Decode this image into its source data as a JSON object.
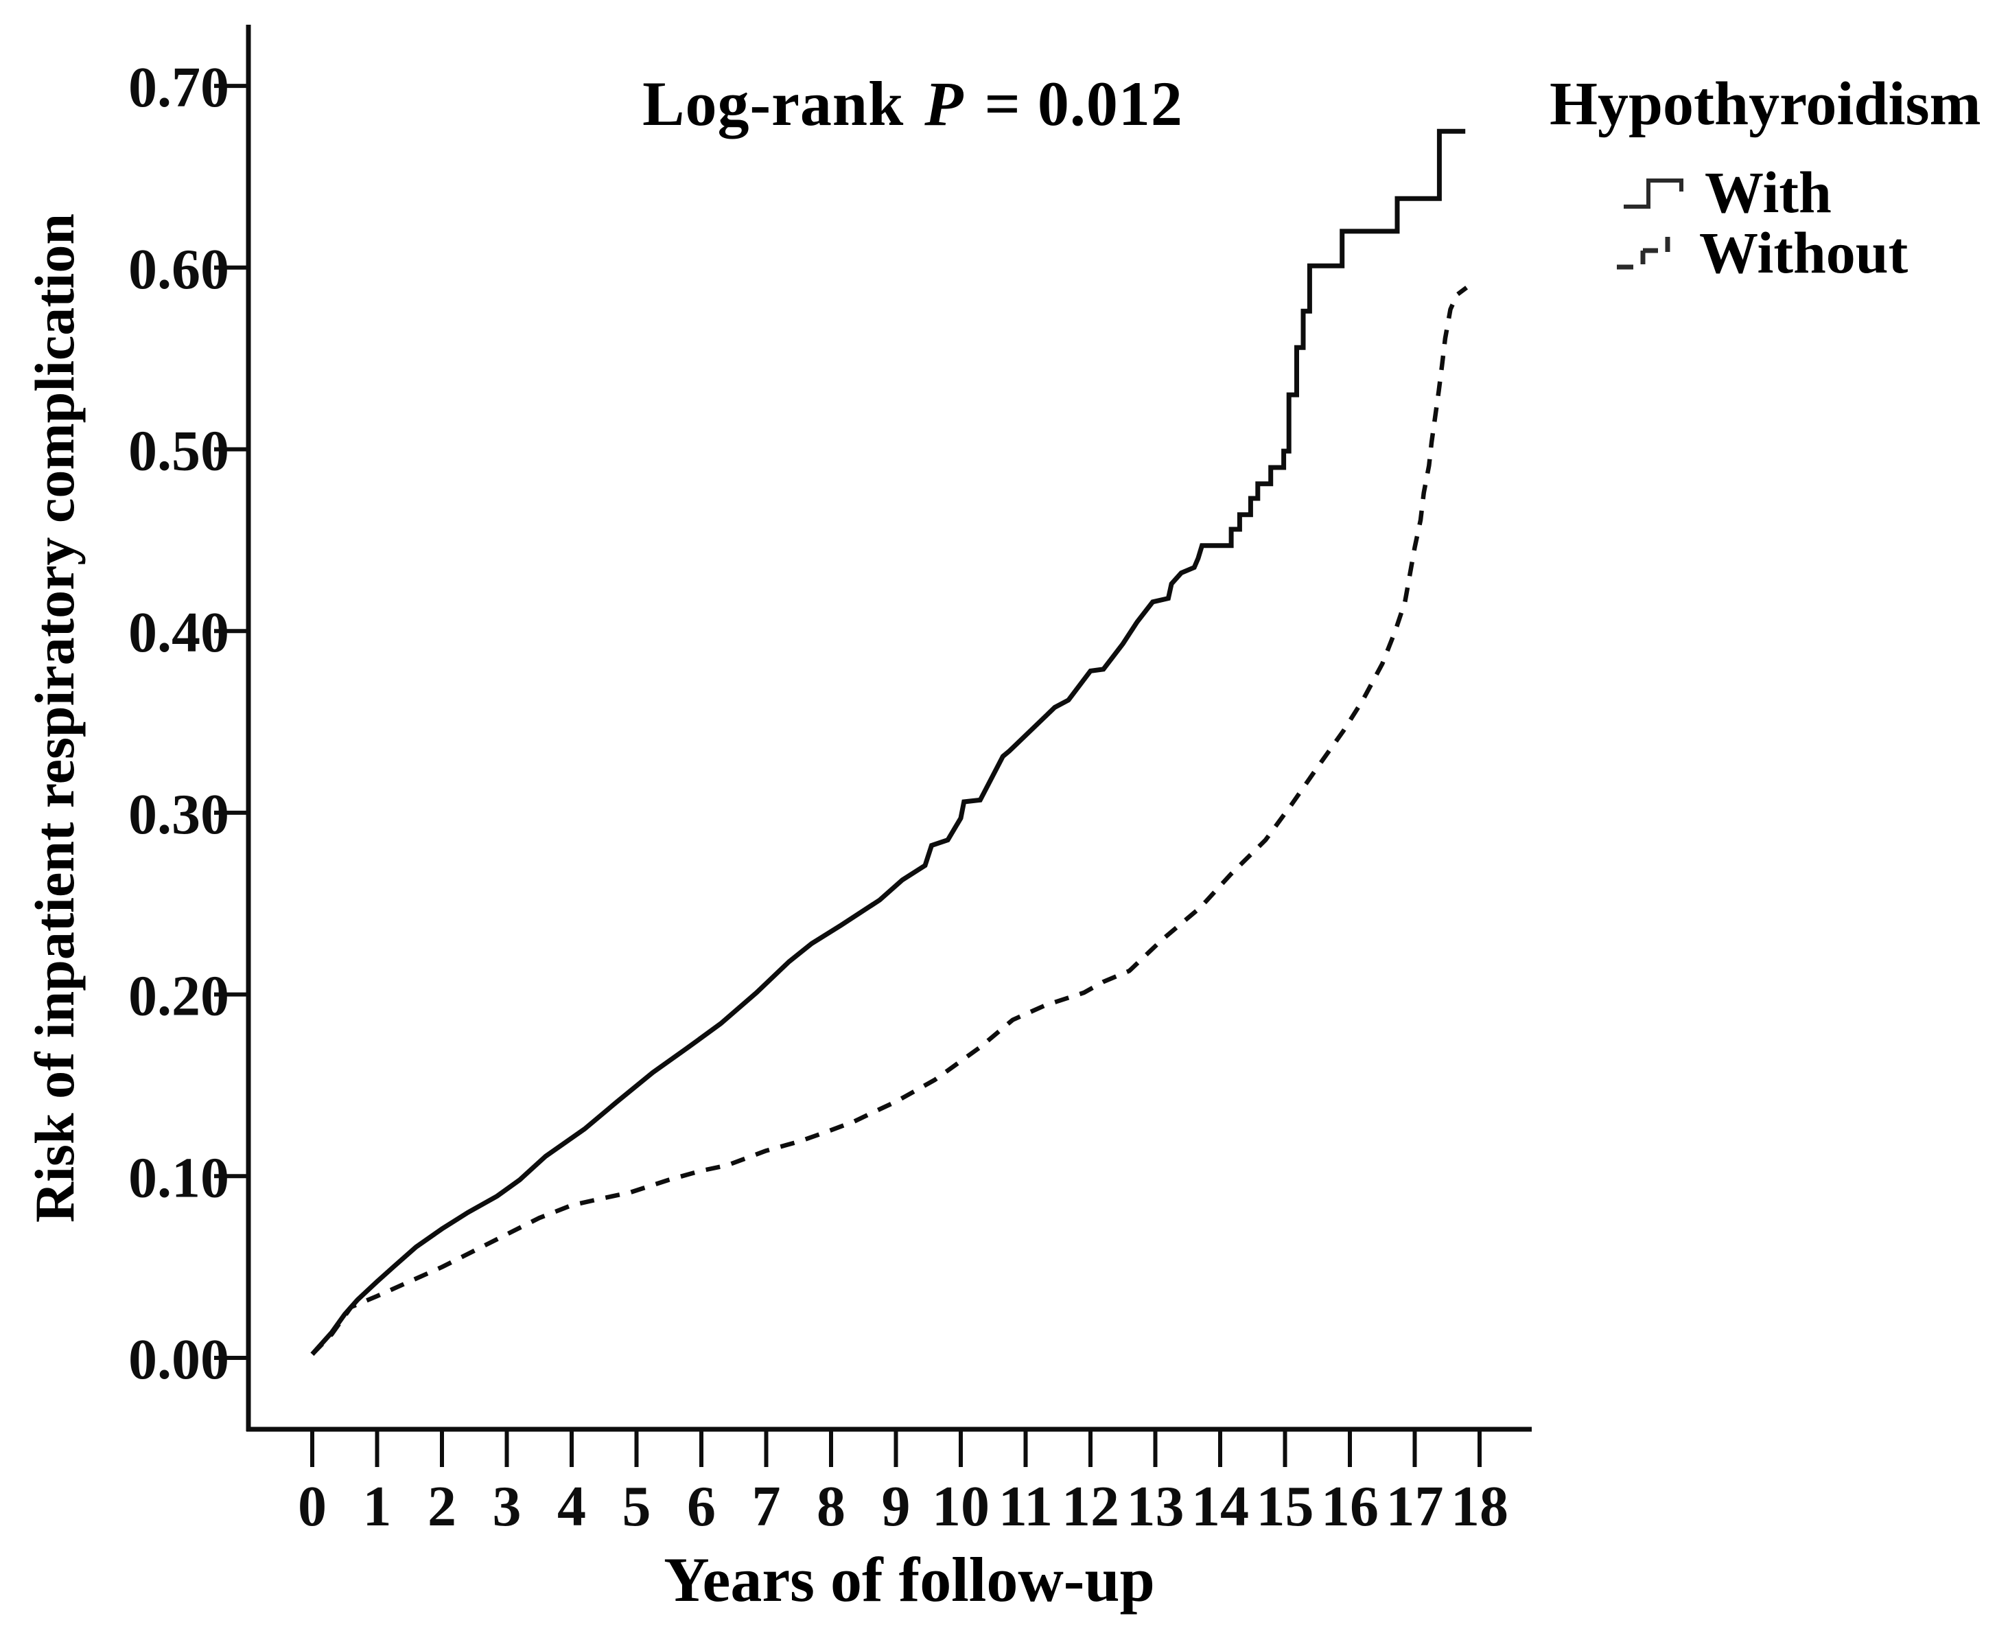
{
  "figure": {
    "background": "#ffffff",
    "ink_color": "#0d0d0d"
  },
  "annotation": {
    "prefix": "Log-rank",
    "stat": "P",
    "suffix": "= 0.012"
  },
  "y_axis": {
    "label": "Risk of inpatient respiratory complication",
    "tick_labels": [
      "0.00",
      "0.10",
      "0.20",
      "0.30",
      "0.40",
      "0.50",
      "0.60",
      "0.70"
    ],
    "tick_values": [
      0.0,
      0.1,
      0.2,
      0.3,
      0.4,
      0.5,
      0.6,
      0.7
    ]
  },
  "x_axis": {
    "label": "Years of follow-up",
    "tick_labels": [
      "0",
      "1",
      "2",
      "3",
      "4",
      "5",
      "6",
      "7",
      "8",
      "9",
      "10",
      "11",
      "12",
      "13",
      "14",
      "15",
      "16",
      "17",
      "18"
    ],
    "tick_values": [
      0,
      1,
      2,
      3,
      4,
      5,
      6,
      7,
      8,
      9,
      10,
      11,
      12,
      13,
      14,
      15,
      16,
      17,
      18
    ]
  },
  "legend": {
    "title": "Hypothyroidism",
    "items": [
      {
        "label": "With",
        "line_style": "solid"
      },
      {
        "label": "Without",
        "line_style": "dashed"
      }
    ]
  },
  "chart_data": {
    "type": "line",
    "subtype": "cumulative-risk-kaplan-meier",
    "title": "Log-rank P = 0.012",
    "xlabel": "Years of follow-up",
    "ylabel": "Risk of inpatient respiratory complication",
    "xlim": [
      0,
      18.8
    ],
    "ylim": [
      0,
      0.75
    ],
    "grid": false,
    "legend_title": "Hypothyroidism",
    "legend_position": "top-right-outside",
    "series": [
      {
        "name": "With",
        "style": "solid",
        "points": [
          [
            0,
            0.002
          ],
          [
            0.15,
            0.008
          ],
          [
            0.3,
            0.014
          ],
          [
            0.5,
            0.024
          ],
          [
            0.7,
            0.032
          ],
          [
            1,
            0.042
          ],
          [
            1.25,
            0.05
          ],
          [
            1.6,
            0.061
          ],
          [
            2,
            0.071
          ],
          [
            2.4,
            0.08
          ],
          [
            2.85,
            0.089
          ],
          [
            3.2,
            0.098
          ],
          [
            3.6,
            0.111
          ],
          [
            4.2,
            0.126
          ],
          [
            4.7,
            0.141
          ],
          [
            5.25,
            0.157
          ],
          [
            5.8,
            0.171
          ],
          [
            6.3,
            0.184
          ],
          [
            6.85,
            0.201
          ],
          [
            7.35,
            0.218
          ],
          [
            7.7,
            0.228
          ],
          [
            8.15,
            0.238
          ],
          [
            8.75,
            0.252
          ],
          [
            9.1,
            0.263
          ],
          [
            9.45,
            0.271
          ],
          [
            9.55,
            0.282
          ],
          [
            9.8,
            0.285
          ],
          [
            10.0,
            0.297
          ],
          [
            10.05,
            0.306
          ],
          [
            10.3,
            0.307
          ],
          [
            10.65,
            0.331
          ],
          [
            10.75,
            0.334
          ],
          [
            11.1,
            0.346
          ],
          [
            11.45,
            0.358
          ],
          [
            11.66,
            0.362
          ],
          [
            12.0,
            0.378
          ],
          [
            12.2,
            0.379
          ],
          [
            12.5,
            0.393
          ],
          [
            12.72,
            0.405
          ],
          [
            12.96,
            0.416
          ],
          [
            13.2,
            0.418
          ],
          [
            13.25,
            0.426
          ],
          [
            13.4,
            0.432
          ],
          [
            13.6,
            0.435
          ],
          [
            13.66,
            0.44
          ],
          [
            13.72,
            0.447
          ],
          [
            14.17,
            0.447
          ],
          [
            14.17,
            0.456
          ],
          [
            14.3,
            0.456
          ],
          [
            14.3,
            0.464
          ],
          [
            14.47,
            0.464
          ],
          [
            14.47,
            0.473
          ],
          [
            14.58,
            0.473
          ],
          [
            14.58,
            0.481
          ],
          [
            14.78,
            0.481
          ],
          [
            14.78,
            0.49
          ],
          [
            14.98,
            0.49
          ],
          [
            14.98,
            0.499
          ],
          [
            15.06,
            0.499
          ],
          [
            15.06,
            0.53
          ],
          [
            15.18,
            0.53
          ],
          [
            15.18,
            0.556
          ],
          [
            15.28,
            0.556
          ],
          [
            15.28,
            0.576
          ],
          [
            15.38,
            0.576
          ],
          [
            15.38,
            0.601
          ],
          [
            15.88,
            0.601
          ],
          [
            15.88,
            0.62
          ],
          [
            16.73,
            0.62
          ],
          [
            16.73,
            0.638
          ],
          [
            17.38,
            0.638
          ],
          [
            17.38,
            0.675
          ],
          [
            17.78,
            0.675
          ]
        ]
      },
      {
        "name": "Without",
        "style": "dashed",
        "points": [
          [
            0,
            0.002
          ],
          [
            0.3,
            0.013
          ],
          [
            0.6,
            0.028
          ],
          [
            1,
            0.034
          ],
          [
            1.5,
            0.042
          ],
          [
            2,
            0.05
          ],
          [
            2.5,
            0.059
          ],
          [
            3,
            0.068
          ],
          [
            3.5,
            0.077
          ],
          [
            4,
            0.084
          ],
          [
            4.5,
            0.088
          ],
          [
            4.9,
            0.091
          ],
          [
            5.5,
            0.098
          ],
          [
            6,
            0.103
          ],
          [
            6.4,
            0.106
          ],
          [
            7,
            0.114
          ],
          [
            7.5,
            0.119
          ],
          [
            7.9,
            0.124
          ],
          [
            8.35,
            0.13
          ],
          [
            8.7,
            0.136
          ],
          [
            9,
            0.141
          ],
          [
            9.3,
            0.147
          ],
          [
            9.6,
            0.153
          ],
          [
            9.95,
            0.162
          ],
          [
            10.3,
            0.171
          ],
          [
            10.8,
            0.186
          ],
          [
            11.3,
            0.194
          ],
          [
            11.9,
            0.201
          ],
          [
            12.2,
            0.207
          ],
          [
            12.6,
            0.213
          ],
          [
            13.1,
            0.23
          ],
          [
            13.7,
            0.248
          ],
          [
            14.16,
            0.266
          ],
          [
            14.7,
            0.285
          ],
          [
            15.11,
            0.305
          ],
          [
            15.5,
            0.325
          ],
          [
            15.9,
            0.345
          ],
          [
            16.2,
            0.362
          ],
          [
            16.5,
            0.382
          ],
          [
            16.7,
            0.4
          ],
          [
            16.85,
            0.416
          ],
          [
            17,
            0.446
          ],
          [
            17.09,
            0.461
          ],
          [
            17.14,
            0.476
          ],
          [
            17.22,
            0.491
          ],
          [
            17.26,
            0.504
          ],
          [
            17.32,
            0.519
          ],
          [
            17.37,
            0.532
          ],
          [
            17.42,
            0.546
          ],
          [
            17.47,
            0.561
          ],
          [
            17.55,
            0.577
          ],
          [
            17.65,
            0.585
          ],
          [
            17.8,
            0.589
          ]
        ]
      }
    ]
  }
}
